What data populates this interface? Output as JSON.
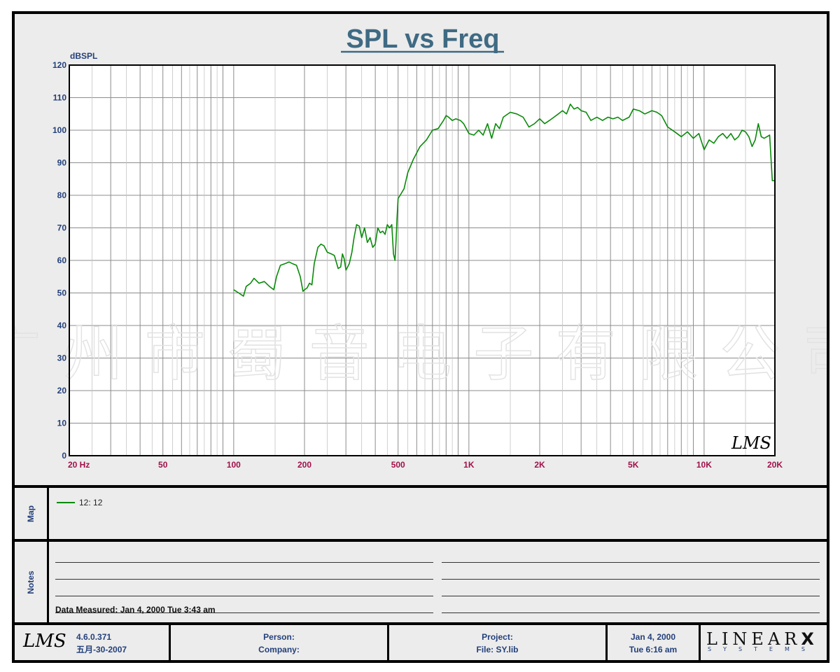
{
  "chart_data": {
    "type": "line",
    "title": "SPL vs Freq",
    "ylabel": "dBSPL",
    "xscale": "log",
    "xlim": [
      20,
      20000
    ],
    "ylim": [
      0,
      120
    ],
    "grid": true,
    "yticks": [
      0,
      10,
      20,
      30,
      40,
      50,
      60,
      70,
      80,
      90,
      100,
      110,
      120
    ],
    "xtick_labels": [
      {
        "value": 20,
        "label": "20  Hz"
      },
      {
        "value": 50,
        "label": "50"
      },
      {
        "value": 100,
        "label": "100"
      },
      {
        "value": 200,
        "label": "200"
      },
      {
        "value": 500,
        "label": "500"
      },
      {
        "value": 1000,
        "label": "1K"
      },
      {
        "value": 2000,
        "label": "2K"
      },
      {
        "value": 5000,
        "label": "5K"
      },
      {
        "value": 10000,
        "label": "10K"
      },
      {
        "value": 20000,
        "label": "20K"
      }
    ],
    "series": [
      {
        "name": "12: 12",
        "color": "#0a8a0a",
        "x": [
          100,
          105,
          110,
          113,
          118,
          122,
          128,
          135,
          142,
          148,
          152,
          158,
          165,
          172,
          178,
          185,
          192,
          197,
          200,
          205,
          210,
          215,
          220,
          228,
          235,
          242,
          250,
          260,
          268,
          278,
          285,
          290,
          295,
          300,
          310,
          318,
          325,
          333,
          342,
          350,
          360,
          370,
          380,
          390,
          400,
          410,
          420,
          430,
          440,
          450,
          460,
          470,
          478,
          485,
          490,
          495,
          500,
          510,
          530,
          550,
          580,
          620,
          660,
          700,
          740,
          780,
          800,
          820,
          850,
          880,
          920,
          950,
          1000,
          1050,
          1100,
          1150,
          1200,
          1250,
          1300,
          1350,
          1400,
          1500,
          1600,
          1700,
          1800,
          1900,
          2000,
          2100,
          2200,
          2300,
          2400,
          2500,
          2600,
          2700,
          2800,
          2900,
          3000,
          3150,
          3300,
          3500,
          3700,
          3900,
          4100,
          4300,
          4500,
          4800,
          5000,
          5300,
          5600,
          6000,
          6300,
          6600,
          7000,
          7500,
          8000,
          8500,
          9000,
          9500,
          10000,
          10500,
          11000,
          11500,
          12000,
          12500,
          13000,
          13500,
          14000,
          14500,
          15000,
          15500,
          16000,
          16500,
          17000,
          17500,
          18000,
          18500,
          19000,
          19500,
          20000
        ],
        "y": [
          51,
          50,
          49,
          52,
          53,
          54.5,
          53,
          53.5,
          52,
          51,
          55,
          58.5,
          59,
          59.5,
          59,
          58.5,
          55,
          50.5,
          51,
          51.5,
          53,
          52.5,
          59,
          64,
          65,
          64.5,
          62.5,
          62,
          61.5,
          57.5,
          58,
          62,
          60.5,
          57,
          59,
          62.5,
          67,
          71,
          70.5,
          67,
          70,
          65.5,
          67,
          64,
          65,
          70,
          68.5,
          69,
          68,
          71,
          70,
          71,
          62,
          60,
          66,
          73,
          79,
          80,
          82,
          87,
          91,
          95,
          97,
          100,
          100.5,
          103,
          104.5,
          104,
          103,
          103.5,
          103,
          102,
          99,
          98.5,
          100,
          98.5,
          102,
          97.5,
          102,
          100.5,
          104,
          105.5,
          105,
          104,
          101,
          102,
          103.5,
          102,
          103,
          104,
          105,
          106,
          105,
          108,
          106.5,
          107,
          106,
          105.5,
          103,
          104,
          103,
          104,
          103.5,
          104,
          103,
          104,
          106.5,
          106,
          105,
          106,
          105.5,
          104.5,
          101,
          99.5,
          98,
          99.5,
          97.5,
          99,
          94,
          97,
          96,
          98,
          99,
          97.5,
          99,
          97,
          98,
          100,
          99.5,
          98,
          95,
          97,
          102,
          98,
          97.5,
          98,
          98.5,
          84.5,
          84.5
        ]
      }
    ]
  },
  "watermark": "广 州 市 蜀 音 电 子 有 限 公 司",
  "chart_logo": "LMS",
  "map": {
    "label": "Map",
    "legend_label": "12: 12",
    "legend_color": "#0a8a0a"
  },
  "notes": {
    "label": "Notes",
    "data_measured": "Data Measured: Jan  4, 2000  Tue  3:43 am"
  },
  "footer": {
    "logo": "LMS",
    "version": "4.6.0.371",
    "build_date": "五月-30-2007",
    "person_label": "Person:",
    "company_label": "Company:",
    "project_label": "Project:",
    "file_label": "File: SY.lib",
    "date": "Jan  4, 2000",
    "time": "Tue  6:16 am",
    "brand": "LINEAR",
    "brand_x": "X",
    "brand_sub": "SYSTEMS"
  }
}
